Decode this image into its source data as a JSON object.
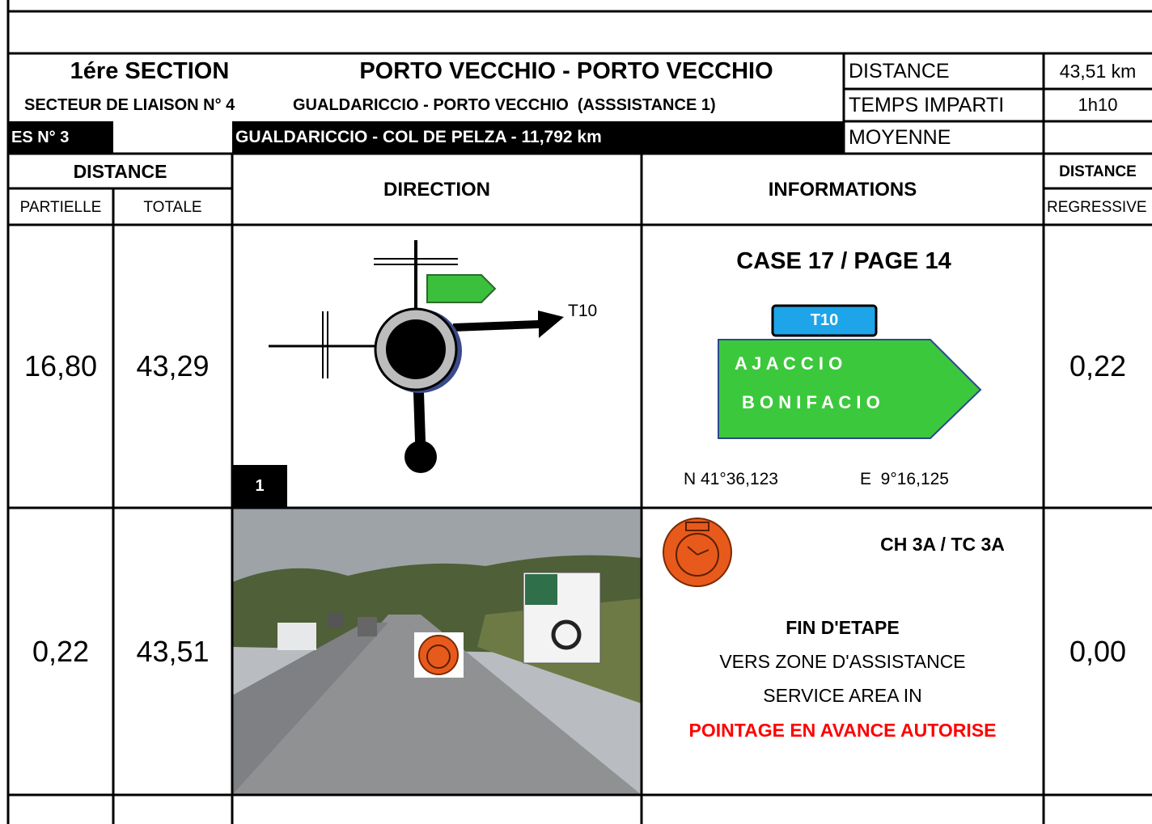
{
  "header": {
    "section": "1ére SECTION",
    "route": "PORTO VECCHIO - PORTO VECCHIO",
    "distance_label": "DISTANCE",
    "distance_value": "43,51 km",
    "liaison": "SECTEUR DE LIAISON N° 4",
    "liaison_route": "GUALDARICCIO - PORTO VECCHIO  (ASSSISTANCE 1)",
    "time_label": "TEMPS IMPARTI",
    "time_value": "1h10",
    "stage": "ES N° 3",
    "stage_route": "GUALDARICCIO - COL DE PELZA - 11,792 km",
    "average_label": "MOYENNE"
  },
  "columns": {
    "distance": "DISTANCE",
    "partial": "PARTIELLE",
    "total": "TOTALE",
    "direction": "DIRECTION",
    "informations": "INFORMATIONS",
    "distance_regressive": "DISTANCE",
    "regressive": "REGRESSIVE"
  },
  "rows": [
    {
      "partial": "16,80",
      "total": "43,29",
      "box": "1",
      "exit_label": "T10",
      "info_title": "CASE 17 / PAGE 14",
      "sign_road": "T10",
      "sign_destinations": [
        "A J A C C I O",
        "B O N I F A C I O"
      ],
      "lat": "N 41°36,123",
      "lon": "E  9°16,125",
      "regressive": "0,22"
    },
    {
      "partial": "0,22",
      "total": "43,51",
      "check": "CH 3A / TC 3A",
      "info_lines": [
        "FIN D'ETAPE",
        "VERS ZONE D'ASSISTANCE",
        "SERVICE AREA IN",
        "POINTAGE EN AVANCE AUTORISE"
      ],
      "regressive": "0,00"
    }
  ]
}
